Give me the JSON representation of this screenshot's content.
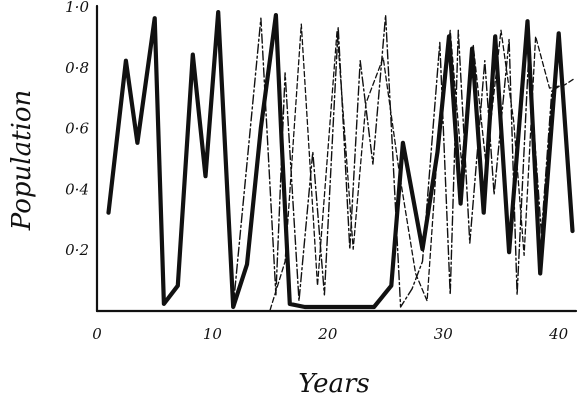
{
  "chart_data": {
    "type": "line",
    "xlabel": "Years",
    "ylabel": "Population",
    "xlim": [
      0,
      41.5
    ],
    "ylim": [
      0,
      1.0
    ],
    "x_ticks": [
      0,
      10,
      20,
      30,
      40
    ],
    "x_tick_labels": [
      "0",
      "10",
      "20",
      "30",
      "40"
    ],
    "y_ticks": [
      0.2,
      0.4,
      0.6,
      0.8,
      1.0
    ],
    "y_tick_labels": [
      "0·2",
      "0·4",
      "0·6",
      "0·8",
      "1·0"
    ],
    "grid": false,
    "legend": false,
    "series": [
      {
        "style": "solid-thick",
        "color": "#111111",
        "x": [
          1.0,
          2.5,
          3.5,
          5.0,
          5.8,
          7.0,
          8.3,
          9.4,
          10.5,
          11.8,
          13.0,
          14.2,
          15.5,
          16.0,
          16.7,
          18,
          20,
          22,
          24,
          25.5,
          26.5,
          28.2,
          29.5,
          30.5,
          31.5,
          32.5,
          33.5,
          34.5,
          35.7,
          37.3,
          38.4,
          40.0,
          41.2
        ],
        "y": [
          0.32,
          0.82,
          0.55,
          0.96,
          0.02,
          0.08,
          0.84,
          0.44,
          0.98,
          0.01,
          0.15,
          0.6,
          0.97,
          0.55,
          0.02,
          0.01,
          0.01,
          0.01,
          0.01,
          0.08,
          0.55,
          0.2,
          0.52,
          0.9,
          0.35,
          0.86,
          0.32,
          0.9,
          0.19,
          0.95,
          0.12,
          0.91,
          0.26
        ]
      },
      {
        "style": "dash-dot",
        "color": "#111111",
        "x": [
          11.8,
          14.2,
          15.5,
          16.3,
          17.5,
          18.7,
          19.7,
          20.9,
          21.9,
          22.8,
          23.9,
          25.0,
          26.3,
          27.3,
          28.2,
          29.7,
          30.6,
          31.3,
          32.3,
          33.6,
          34.4,
          35.7,
          36.4,
          37.4,
          38.5,
          39.4,
          40.6
        ],
        "y": [
          0.01,
          0.96,
          0.05,
          0.78,
          0.03,
          0.52,
          0.05,
          0.93,
          0.2,
          0.82,
          0.48,
          0.97,
          0.01,
          0.07,
          0.16,
          0.88,
          0.05,
          0.92,
          0.22,
          0.82,
          0.38,
          0.89,
          0.05,
          0.84,
          0.25,
          0.72,
          0.75
        ]
      },
      {
        "style": "dashed-thin",
        "color": "#111111",
        "x": [
          15.0,
          16.3,
          17.7,
          19.1,
          20.8,
          22.2,
          23.3,
          24.8,
          26.2,
          27.6,
          28.6,
          29.6,
          30.6,
          31.6,
          32.6,
          33.7,
          35.0,
          36.1,
          37.0,
          38.0,
          39.2,
          40.5,
          41.3
        ],
        "y": [
          0.0,
          0.16,
          0.94,
          0.08,
          0.92,
          0.2,
          0.68,
          0.83,
          0.45,
          0.12,
          0.03,
          0.58,
          0.92,
          0.48,
          0.87,
          0.48,
          0.92,
          0.62,
          0.18,
          0.9,
          0.73,
          0.74,
          0.76
        ]
      }
    ]
  }
}
